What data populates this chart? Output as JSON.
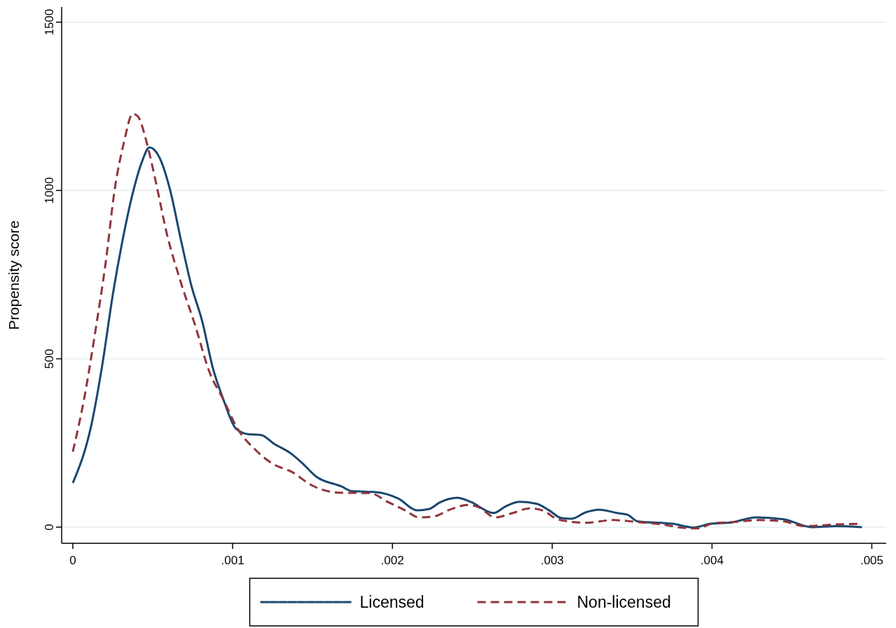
{
  "chart_data": {
    "type": "line",
    "ylabel": "Propensity score",
    "xlim": [
      -7e-05,
      0.00509
    ],
    "ylim": [
      -48,
      1545
    ],
    "xticks": [
      {
        "value": 0,
        "label": "0"
      },
      {
        "value": 0.001,
        "label": ".001"
      },
      {
        "value": 0.002,
        "label": ".002"
      },
      {
        "value": 0.003,
        "label": ".003"
      },
      {
        "value": 0.004,
        "label": ".004"
      },
      {
        "value": 0.005,
        "label": ".005"
      }
    ],
    "yticks": [
      0,
      500,
      1000,
      1500
    ],
    "grid": "y",
    "legend": "bottom",
    "series": [
      {
        "name": "Licensed",
        "color": "#1a476f",
        "line_style": "solid",
        "x": [
          0,
          0.000118,
          0.000185,
          0.000252,
          0.000308,
          0.000375,
          0.00043,
          0.00048,
          0.000542,
          0.000608,
          0.000676,
          0.000742,
          0.00081,
          0.000876,
          0.000943,
          0.00102,
          0.0011,
          0.001177,
          0.001255,
          0.001367,
          0.001434,
          0.001523,
          0.00168,
          0.001746,
          0.0019,
          0.002037,
          0.002155,
          0.00223,
          0.002295,
          0.002404,
          0.00249,
          0.002633,
          0.00271,
          0.002796,
          0.002905,
          0.00298,
          0.003057,
          0.003122,
          0.00321,
          0.003295,
          0.003405,
          0.00347,
          0.003536,
          0.003753,
          0.003883,
          0.003992,
          0.004122,
          0.004275,
          0.00445,
          0.004623,
          0.004775,
          0.004938
        ],
        "values": [
          131,
          308,
          484,
          696,
          844,
          992,
          1082,
          1128,
          1098,
          1003,
          854,
          717,
          611,
          473,
          378,
          293,
          276,
          274,
          249,
          218,
          191,
          150,
          121,
          107,
          104,
          85,
          50,
          54,
          73,
          87,
          75,
          42,
          62,
          75,
          69,
          50,
          27,
          25,
          44,
          52,
          42,
          37,
          17,
          10,
          -1,
          10,
          14,
          29,
          23,
          0,
          3,
          0
        ]
      },
      {
        "name": "Non-licensed",
        "color": "#90353b",
        "line_style": "dashed",
        "x": [
          0,
          7.34e-05,
          0.00014,
          0.000207,
          0.000262,
          0.000319,
          0.000375,
          0.000407,
          0.000463,
          0.00052,
          0.000586,
          0.000676,
          0.000765,
          0.000854,
          0.000943,
          0.00103,
          0.001144,
          0.001255,
          0.001367,
          0.0015,
          0.00168,
          0.001861,
          0.00197,
          0.002079,
          0.002166,
          0.002253,
          0.00236,
          0.00247,
          0.002535,
          0.002644,
          0.002753,
          0.002862,
          0.002948,
          0.003035,
          0.003208,
          0.003383,
          0.003536,
          0.003688,
          0.003818,
          0.003905,
          0.004014,
          0.004122,
          0.004296,
          0.00445,
          0.004579,
          0.004775,
          0.004926
        ],
        "values": [
          224,
          388,
          579,
          791,
          1003,
          1141,
          1228,
          1220,
          1141,
          1024,
          876,
          727,
          600,
          462,
          378,
          293,
          229,
          187,
          165,
          123,
          102,
          101,
          75,
          50,
          29,
          31,
          52,
          66,
          60,
          29,
          42,
          56,
          48,
          23,
          13,
          21,
          15,
          8,
          -2,
          -4,
          12,
          15,
          21,
          17,
          3,
          8,
          10
        ]
      }
    ]
  }
}
